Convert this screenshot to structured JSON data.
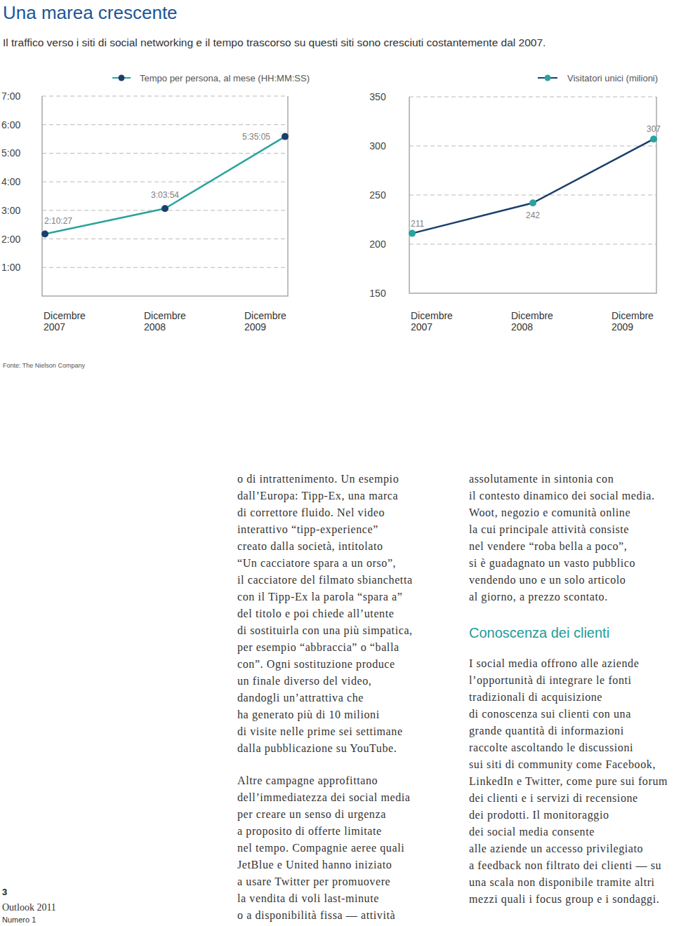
{
  "header": {
    "title": "Una marea crescente",
    "subtitle": "Il traffico verso i siti di social networking e il tempo trascorso su questi siti sono cresciuti costantemente dal 2007."
  },
  "chart_data": [
    {
      "type": "line",
      "categories": [
        "Dicembre 2007",
        "Dicembre 2008",
        "Dicembre 2009"
      ],
      "series": [
        {
          "name": "Tempo per persona, al mese (HH:MM:SS)",
          "color": "#2aa39e",
          "marker": "circle",
          "values": [
            2.1742,
            3.065,
            5.5847
          ],
          "value_labels": [
            "2:10:27",
            "3:03:54",
            "5:35:05"
          ]
        }
      ],
      "ylim": [
        0,
        7
      ],
      "yticks": [
        {
          "value": 1,
          "label": "1:00"
        },
        {
          "value": 2,
          "label": "2:00"
        },
        {
          "value": 3,
          "label": "3:00"
        },
        {
          "value": 4,
          "label": "4:00"
        },
        {
          "value": 5,
          "label": "5:00"
        },
        {
          "value": 6,
          "label": "6:00"
        },
        {
          "value": 7,
          "label": "7:00"
        }
      ],
      "grid": true,
      "data_labels": true,
      "legend": "top"
    },
    {
      "type": "line",
      "categories": [
        "Dicembre 2007",
        "Dicembre 2008",
        "Dicembre 2009"
      ],
      "series": [
        {
          "name": "Visitatori unici (milioni)",
          "color": "#1b3f6b",
          "marker": "circle",
          "values": [
            211,
            242,
            307
          ]
        }
      ],
      "ylim": [
        150,
        350
      ],
      "yticks": [
        150,
        200,
        250,
        300,
        350
      ],
      "grid": true,
      "data_labels": true,
      "legend": "top"
    }
  ],
  "source": "Fonte: The Nielson Company",
  "columns": [
    {
      "blocks": [
        {
          "lines": [
            "o di intrattenimento. Un esempio",
            "dall’Europa: Tipp-Ex, una marca",
            "di correttore fluido. Nel video",
            "interattivo “tipp-experience”",
            "creato dalla società, intitolato",
            "“Un cacciatore spara a un orso”,",
            "il cacciatore del filmato sbianchetta",
            "con il Tipp-Ex la parola “spara a”",
            "del titolo e poi chiede all’utente",
            "di sostituirla con una più simpatica,",
            "per esempio “abbraccia” o “balla",
            "con”. Ogni sostituzione produce",
            "un finale diverso del video,",
            "dandogli un’attrattiva che",
            "ha generato più di 10 milioni",
            "di visite nelle prime sei settimane",
            "dalla pubblicazione su YouTube."
          ]
        },
        {
          "lines": [
            "Altre campagne approfittano",
            "dell’immediatezza dei social media",
            "per creare un senso di urgenza",
            "a proposito di offerte limitate",
            "nel tempo. Compagnie aeree quali",
            "JetBlue e United hanno iniziato",
            "a usare Twitter per promuovere",
            "la vendita di voli last-minute",
            "o a disponibilità fissa — attività"
          ]
        }
      ]
    },
    {
      "blocks": [
        {
          "lines": [
            "assolutamente in sintonia con",
            "il contesto dinamico dei social media.",
            "Woot, negozio e comunità online",
            "la cui principale attività consiste",
            "nel vendere “roba bella a poco”,",
            "si è guadagnato un vasto pubblico",
            "vendendo uno e un solo articolo",
            "al giorno, a prezzo scontato."
          ]
        },
        {
          "heading": "Conoscenza dei clienti"
        },
        {
          "lines": [
            "I social media offrono alle aziende",
            "l’opportunità di integrare le fonti",
            "tradizionali di acquisizione",
            "di conoscenza sui clienti con una",
            "grande quantità di informazioni",
            "raccolte ascoltando le discussioni",
            "sui siti di community come Facebook,",
            "LinkedIn e Twitter, come pure sui forum",
            "dei clienti e i servizi di recensione",
            "dei prodotti. Il monitoraggio",
            "dei social media consente",
            "alle aziende un accesso privilegiato",
            "a feedback non filtrato dei clienti — su",
            "una scala non disponibile tramite altri",
            "mezzi quali i focus group e i sondaggi."
          ]
        }
      ]
    }
  ],
  "footer": {
    "page": 3,
    "publication": "Outlook 2011",
    "issue": "Numero 1"
  }
}
